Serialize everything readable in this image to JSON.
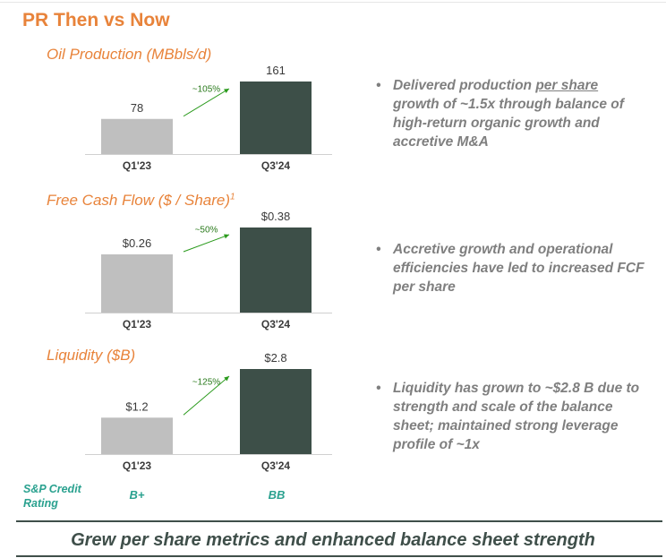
{
  "page": {
    "title": "PR Then vs Now"
  },
  "chart_data": [
    {
      "type": "bar",
      "title": "Oil Production (MBbls/d)",
      "title_sup": "",
      "categories": [
        "Q1'23",
        "Q3'24"
      ],
      "values": [
        78,
        161
      ],
      "data_labels": [
        "78",
        "161"
      ],
      "growth_label": "~105%",
      "ylim": [
        0,
        161
      ],
      "colors": [
        "#bfbfbf",
        "#3d4f48"
      ]
    },
    {
      "type": "bar",
      "title": "Free Cash Flow ($ / Share)",
      "title_sup": "1",
      "categories": [
        "Q1'23",
        "Q3'24"
      ],
      "values": [
        0.26,
        0.38
      ],
      "data_labels": [
        "$0.26",
        "$0.38"
      ],
      "growth_label": "~50%",
      "ylim": [
        0,
        0.38
      ],
      "colors": [
        "#bfbfbf",
        "#3d4f48"
      ]
    },
    {
      "type": "bar",
      "title": "Liquidity ($B)",
      "title_sup": "",
      "categories": [
        "Q1'23",
        "Q3'24"
      ],
      "values": [
        1.2,
        2.8
      ],
      "data_labels": [
        "$1.2",
        "$2.8"
      ],
      "growth_label": "~125%",
      "ylim": [
        0,
        2.8
      ],
      "colors": [
        "#bfbfbf",
        "#3d4f48"
      ]
    }
  ],
  "bullets": [
    {
      "before": "Delivered production ",
      "underlined": "per share",
      "after": " growth of ~1.5x through balance of high-return organic growth and accretive M&A"
    },
    {
      "before": "Accretive growth and operational efficiencies have led to increased FCF per share",
      "underlined": "",
      "after": ""
    },
    {
      "before": "Liquidity has grown to ~$2.8 B due to strength and scale of the balance sheet; maintained strong leverage profile of ~1x",
      "underlined": "",
      "after": ""
    }
  ],
  "credit": {
    "label": "S&P Credit Rating",
    "q1_rating": "B+",
    "q3_rating": "BB"
  },
  "footer": {
    "text": "Grew per share metrics and enhanced balance sheet strength"
  },
  "colors": {
    "accent": "#e8833a",
    "dark_bar": "#3d4f48",
    "light_bar": "#bfbfbf",
    "arrow": "#2a9a1c",
    "credit": "#2aa18f"
  }
}
